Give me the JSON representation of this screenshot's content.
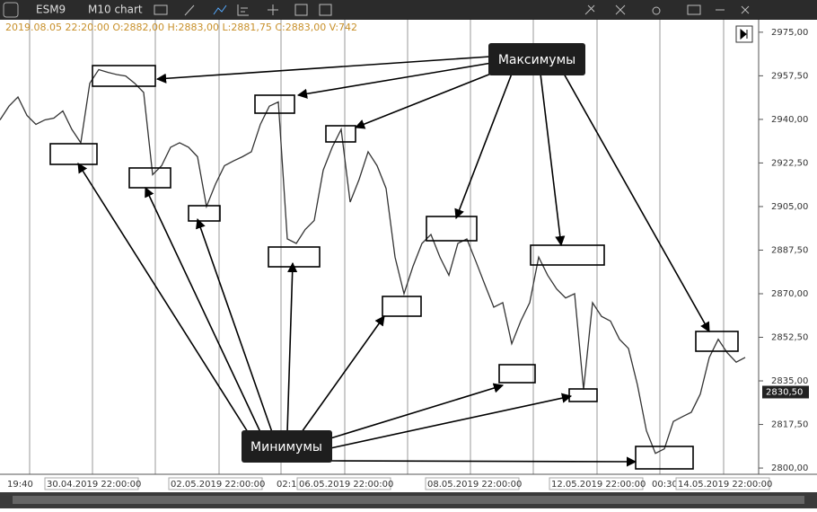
{
  "toolbar": {
    "symbol": "ESM9",
    "chart": "M10 chart"
  },
  "info_line": "2019.08.05 22:20:00 O:2882,00 H:2883,00 L:2881,75 C:2883,00 V:742",
  "annotations": {
    "maxima": "Максимумы",
    "minima": "Минимумы"
  },
  "chart_data": {
    "type": "line",
    "x_labels": [
      "19:40",
      "30.04.2019 22:00:00",
      "02.05.2019 22:00:00",
      "02:10",
      "06.05.2019 22:00:00",
      "08.05.2019 22:00:00",
      "12.05.2019 22:00:00",
      "00:30",
      "14.05.2019 22:00:00"
    ],
    "series": [
      {
        "color": "#333333",
        "values": [
          2939.8,
          2945.3,
          2949,
          2941.6,
          2938,
          2939.8,
          2940.5,
          2943.4,
          2936,
          2930.6,
          2954.5,
          2960,
          2958.9,
          2958,
          2957.4,
          2954.5,
          2950.8,
          2917.8,
          2921.4,
          2928.8,
          2930.6,
          2928.8,
          2925,
          2905,
          2914,
          2921.4,
          2923.3,
          2925,
          2927,
          2938,
          2945.3,
          2947,
          2892,
          2890.2,
          2895.8,
          2899.4,
          2919.6,
          2928.8,
          2936,
          2906.8,
          2915.9,
          2927,
          2921.4,
          2912.3,
          2884.7,
          2870,
          2881,
          2890.2,
          2893.8,
          2884.7,
          2877.4,
          2890.2,
          2892,
          2883,
          2873.7,
          2864.6,
          2866.4,
          2849.9,
          2859,
          2866.4,
          2884.7,
          2877.4,
          2871.9,
          2868.3,
          2870,
          2831.5,
          2866.4,
          2860.9,
          2859,
          2851.7,
          2848,
          2833.4,
          2815,
          2805.9,
          2807.7,
          2818.7,
          2820.6,
          2822.4,
          2829.7,
          2844.4,
          2851.7,
          2846.3,
          2842.5,
          2844.4
        ]
      }
    ],
    "last_price": {
      "value": 2830.5,
      "label": "2830,50"
    },
    "ylim": [
      2797.5,
      2980
    ],
    "yticks": [
      {
        "value": 2800,
        "label": "2800,00"
      },
      {
        "value": 2817.5,
        "label": "2817,50"
      },
      {
        "value": 2835,
        "label": "2835,00"
      },
      {
        "value": 2852.5,
        "label": "2852,50"
      },
      {
        "value": 2870,
        "label": "2870,00"
      },
      {
        "value": 2887.5,
        "label": "2887,50"
      },
      {
        "value": 2905,
        "label": "2905,00"
      },
      {
        "value": 2922.5,
        "label": "2922,50"
      },
      {
        "value": 2940,
        "label": "2940,00"
      },
      {
        "value": 2957.5,
        "label": "2957,50"
      },
      {
        "value": 2975,
        "label": "2975,00"
      }
    ]
  }
}
